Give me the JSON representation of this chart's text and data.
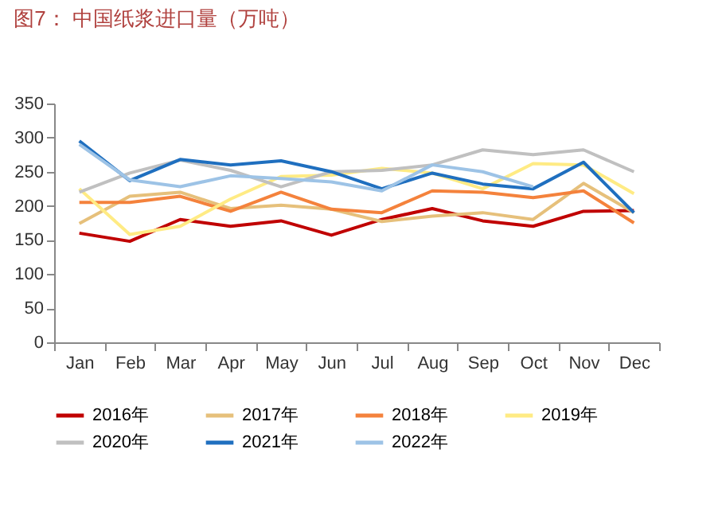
{
  "chart_data": {
    "type": "line",
    "title": "图7：  中国纸浆进口量（万吨）",
    "categories": [
      "Jan",
      "Feb",
      "Mar",
      "Apr",
      "May",
      "Jun",
      "Jul",
      "Aug",
      "Sep",
      "Oct",
      "Nov",
      "Dec"
    ],
    "series": [
      {
        "name": "2016年",
        "color": "#c00000",
        "values": [
          160,
          148,
          180,
          170,
          178,
          157,
          180,
          196,
          178,
          170,
          192,
          193
        ]
      },
      {
        "name": "2017年",
        "color": "#e6c07b",
        "values": [
          174,
          214,
          220,
          196,
          201,
          195,
          177,
          185,
          190,
          180,
          233,
          190
        ]
      },
      {
        "name": "2018年",
        "color": "#f4823c",
        "values": [
          205,
          205,
          214,
          192,
          220,
          195,
          190,
          222,
          220,
          212,
          222,
          175
        ]
      },
      {
        "name": "2019年",
        "color": "#ffeb84",
        "values": [
          225,
          158,
          170,
          210,
          243,
          245,
          255,
          248,
          225,
          262,
          260,
          218
        ]
      },
      {
        "name": "2020年",
        "color": "#c0c0c0",
        "values": [
          220,
          248,
          267,
          252,
          228,
          250,
          252,
          260,
          282,
          275,
          282,
          250
        ]
      },
      {
        "name": "2021年",
        "color": "#1f6fbf",
        "values": [
          295,
          237,
          268,
          260,
          266,
          250,
          225,
          248,
          232,
          225,
          264,
          190
        ]
      },
      {
        "name": "2022年",
        "color": "#9dc3e6",
        "values": [
          290,
          238,
          228,
          244,
          240,
          235,
          222,
          260,
          250,
          228,
          null,
          null
        ]
      }
    ],
    "ylim": [
      0,
      350
    ],
    "yticks": [
      0,
      50,
      100,
      150,
      200,
      250,
      300,
      350
    ],
    "grid": false,
    "legend": "bottom"
  }
}
